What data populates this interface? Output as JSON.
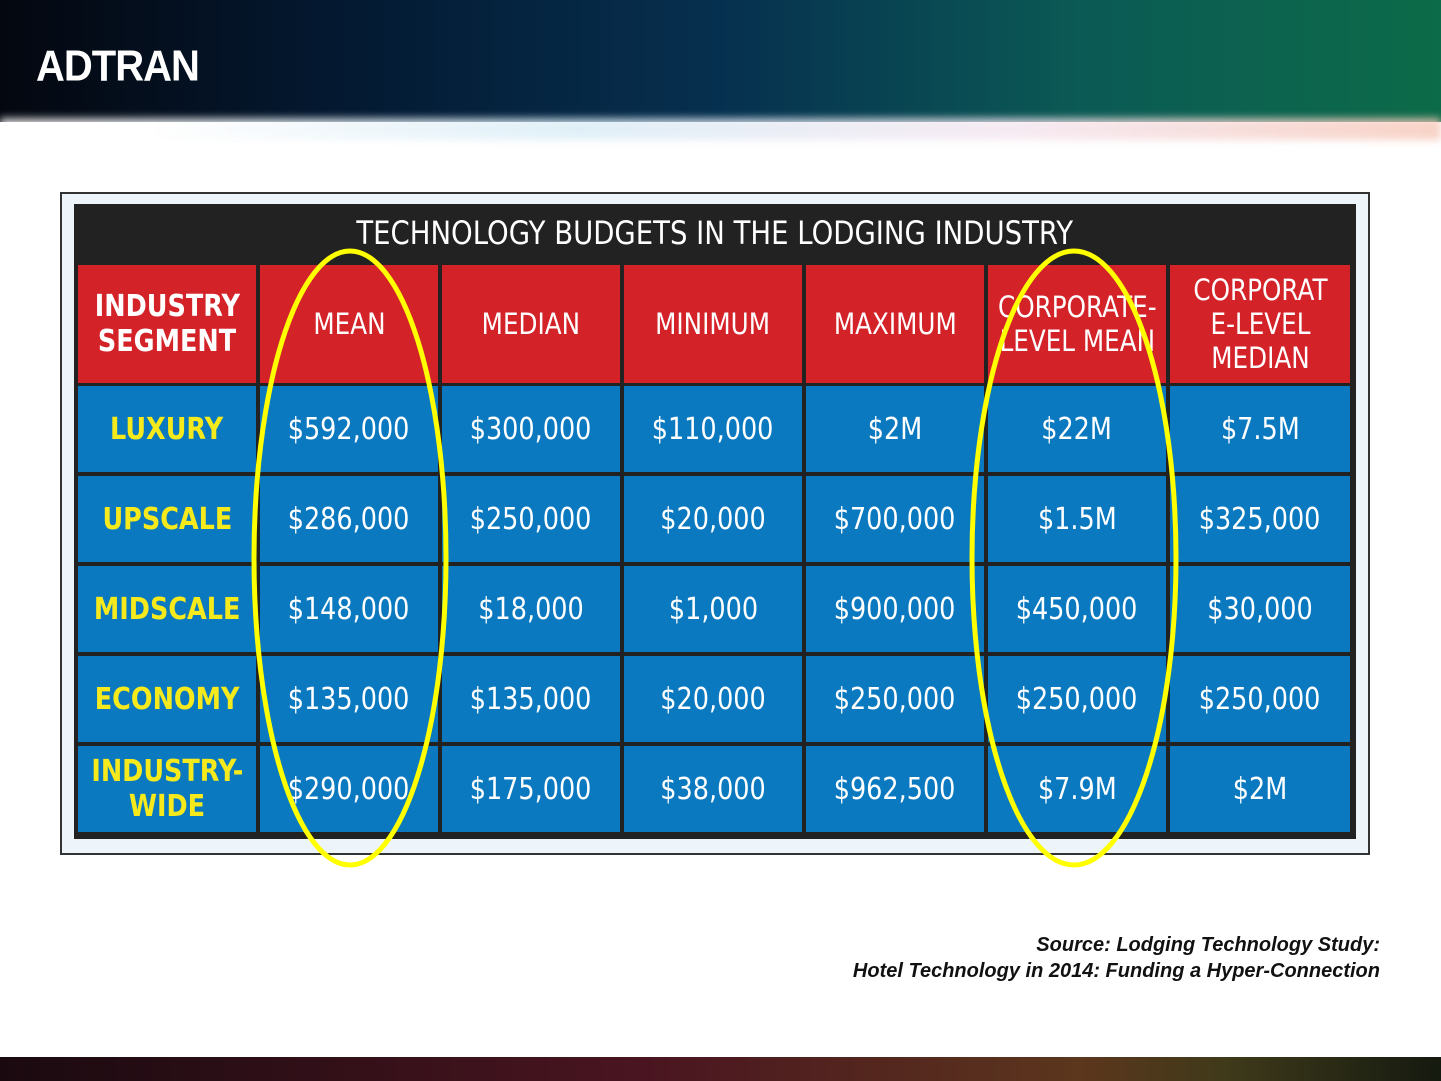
{
  "logo": "ADTRAN",
  "table": {
    "title": "TECHNOLOGY BUDGETS IN THE LODGING INDUSTRY",
    "headers": [
      "INDUSTRY SEGMENT",
      "MEAN",
      "MEDIAN",
      "MINIMUM",
      "MAXIMUM",
      "CORPORATE-LEVEL MEAN",
      "CORPORATE-LEVEL MEDIAN"
    ],
    "rows": [
      [
        "LUXURY",
        "$592,000",
        "$300,000",
        "$110,000",
        "$2M",
        "$22M",
        "$7.5M"
      ],
      [
        "UPSCALE",
        "$286,000",
        "$250,000",
        "$20,000",
        "$700,000",
        "$1.5M",
        "$325,000"
      ],
      [
        "MIDSCALE",
        "$148,000",
        "$18,000",
        "$1,000",
        "$900,000",
        "$450,000",
        "$30,000"
      ],
      [
        "ECONOMY",
        "$135,000",
        "$135,000",
        "$20,000",
        "$250,000",
        "$250,000",
        "$250,000"
      ],
      [
        "INDUSTRY-WIDE",
        "$290,000",
        "$175,000",
        "$38,000",
        "$962,500",
        "$7.9M",
        "$2M"
      ]
    ]
  },
  "highlighted_columns": [
    "MEAN",
    "CORPORATE-LEVEL MEAN"
  ],
  "colors": {
    "header_red": "#d42229",
    "cell_blue": "#0a79bf",
    "segment_yellow": "#f6ea1c",
    "highlight": "#ffff00"
  },
  "source": {
    "line1": "Source: Lodging Technology Study:",
    "line2": "Hotel Technology in 2014: Funding a Hyper-Connection"
  }
}
